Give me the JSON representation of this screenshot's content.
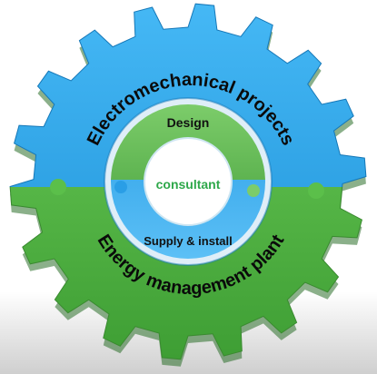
{
  "outer_gear": {
    "top_label": "Electromechanical projects",
    "bottom_label": "Energy management plant",
    "top_color": "#1e9fe6",
    "bottom_color": "#5bbf4a"
  },
  "inner_ring": {
    "top_label": "Design",
    "bottom_label": "Supply & install",
    "top_color": "#4aab3a",
    "bottom_color": "#1e9fe6"
  },
  "center": {
    "label": "consultant",
    "label_color": "#2ea84a"
  }
}
